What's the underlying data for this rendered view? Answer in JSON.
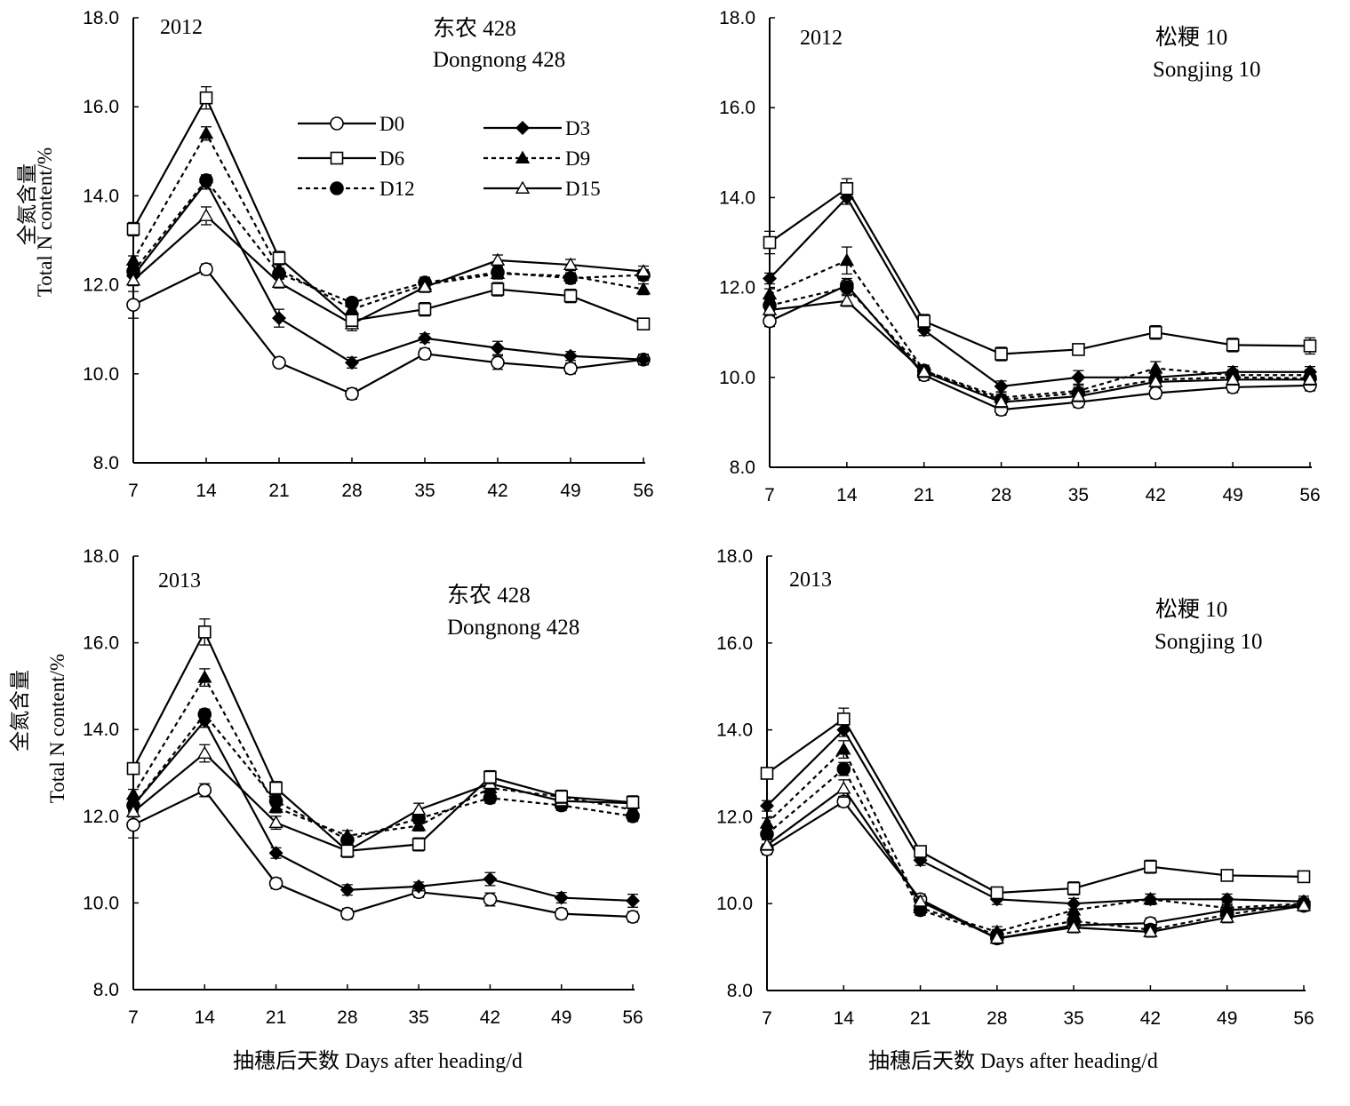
{
  "legend": [
    {
      "key": "D0",
      "label": "D0"
    },
    {
      "key": "D3",
      "label": "D3"
    },
    {
      "key": "D6",
      "label": "D6"
    },
    {
      "key": "D9",
      "label": "D9"
    },
    {
      "key": "D12",
      "label": "D12"
    },
    {
      "key": "D15",
      "label": "D15"
    }
  ],
  "series_styles": {
    "D0": {
      "marker": "circle",
      "fill": "#ffffff",
      "dash": "solid"
    },
    "D3": {
      "marker": "diamond",
      "fill": "#000000",
      "dash": "solid"
    },
    "D6": {
      "marker": "square",
      "fill": "#ffffff",
      "dash": "solid"
    },
    "D9": {
      "marker": "triangle",
      "fill": "#000000",
      "dash": "dotted"
    },
    "D12": {
      "marker": "circle",
      "fill": "#000000",
      "dash": "dotted"
    },
    "D15": {
      "marker": "triangle",
      "fill": "#ffffff",
      "dash": "solid"
    }
  },
  "chart_data": [
    {
      "type": "line",
      "year": "2012",
      "variety_cn": "东农 428",
      "variety_en": "Dongnong 428",
      "ylabel_cn": "全氮含量",
      "ylabel_en": "Total  N content/%",
      "xlabel": "",
      "x": [
        7,
        14,
        21,
        28,
        35,
        42,
        49,
        56
      ],
      "yticks": [
        "8.0",
        "10.0",
        "12.0",
        "14.0",
        "16.0",
        "18.0"
      ],
      "ylim": [
        8,
        18
      ],
      "show_legend": true,
      "series": [
        {
          "name": "D0",
          "values": [
            11.55,
            12.35,
            10.25,
            9.55,
            10.45,
            10.25,
            10.12,
            10.32
          ],
          "err": [
            0.3,
            0.12,
            0.1,
            0.12,
            0.12,
            0.15,
            0.12,
            0.1
          ]
        },
        {
          "name": "D3",
          "values": [
            12.2,
            14.3,
            11.25,
            10.25,
            10.8,
            10.58,
            10.4,
            10.32
          ],
          "err": [
            0.2,
            0.15,
            0.2,
            0.12,
            0.1,
            0.15,
            0.1,
            0.12
          ]
        },
        {
          "name": "D6",
          "values": [
            13.25,
            16.2,
            12.6,
            11.2,
            11.45,
            11.9,
            11.75,
            11.12
          ],
          "err": [
            0.15,
            0.25,
            0.15,
            0.12,
            0.15,
            0.15,
            0.15,
            0.12
          ]
        },
        {
          "name": "D9",
          "values": [
            12.55,
            15.4,
            12.35,
            11.45,
            12.0,
            12.25,
            12.2,
            11.9
          ],
          "err": [
            0.1,
            0.15,
            0.15,
            0.12,
            0.12,
            0.12,
            0.12,
            0.12
          ]
        },
        {
          "name": "D12",
          "values": [
            12.3,
            14.35,
            12.25,
            11.6,
            12.05,
            12.28,
            12.15,
            12.22
          ],
          "err": [
            0.12,
            0.12,
            0.12,
            0.1,
            0.12,
            0.12,
            0.12,
            0.12
          ]
        },
        {
          "name": "D15",
          "values": [
            12.1,
            13.55,
            12.05,
            11.12,
            11.95,
            12.55,
            12.45,
            12.3
          ],
          "err": [
            0.12,
            0.2,
            0.12,
            0.15,
            0.12,
            0.12,
            0.12,
            0.12
          ]
        }
      ]
    },
    {
      "type": "line",
      "year": "2012",
      "variety_cn": "松粳 10",
      "variety_en": "Songjing 10",
      "ylabel_cn": "",
      "ylabel_en": "",
      "xlabel": "",
      "x": [
        7,
        14,
        21,
        28,
        35,
        42,
        49,
        56
      ],
      "yticks": [
        "8.0",
        "10.0",
        "12.0",
        "14.0",
        "16.0",
        "18.0"
      ],
      "ylim": [
        8,
        18
      ],
      "show_legend": false,
      "series": [
        {
          "name": "D0",
          "values": [
            11.25,
            12.05,
            10.05,
            9.28,
            9.45,
            9.65,
            9.78,
            9.82
          ],
          "err": [
            0.12,
            0.15,
            0.12,
            0.12,
            0.12,
            0.12,
            0.12,
            0.12
          ]
        },
        {
          "name": "D3",
          "values": [
            12.2,
            14.0,
            11.05,
            9.8,
            10.0,
            10.0,
            10.12,
            10.12
          ],
          "err": [
            0.12,
            0.15,
            0.12,
            0.12,
            0.15,
            0.15,
            0.12,
            0.12
          ]
        },
        {
          "name": "D6",
          "values": [
            13.0,
            14.2,
            11.25,
            10.52,
            10.62,
            11.0,
            10.72,
            10.7
          ],
          "err": [
            0.25,
            0.22,
            0.15,
            0.15,
            0.12,
            0.15,
            0.15,
            0.18
          ]
        },
        {
          "name": "D9",
          "values": [
            11.85,
            12.6,
            10.15,
            9.55,
            9.7,
            10.2,
            10.05,
            10.05
          ],
          "err": [
            0.12,
            0.3,
            0.12,
            0.12,
            0.12,
            0.15,
            0.12,
            0.12
          ]
        },
        {
          "name": "D12",
          "values": [
            11.6,
            12.0,
            10.15,
            9.5,
            9.65,
            9.95,
            10.0,
            9.98
          ],
          "err": [
            0.12,
            0.15,
            0.12,
            0.12,
            0.12,
            0.12,
            0.12,
            0.12
          ]
        },
        {
          "name": "D15",
          "values": [
            11.5,
            11.7,
            10.12,
            9.45,
            9.58,
            9.9,
            9.95,
            9.95
          ],
          "err": [
            0.12,
            0.12,
            0.12,
            0.12,
            0.12,
            0.12,
            0.12,
            0.12
          ]
        }
      ]
    },
    {
      "type": "line",
      "year": "2013",
      "variety_cn": "东农 428",
      "variety_en": "Dongnong 428",
      "ylabel_cn": "全氮含量",
      "ylabel_en": "Total N content/%",
      "xlabel": "抽穗后天数 Days after heading/d",
      "x": [
        7,
        14,
        21,
        28,
        35,
        42,
        49,
        56
      ],
      "yticks": [
        "8.0",
        "10.0",
        "12.0",
        "14.0",
        "16.0",
        "18.0"
      ],
      "ylim": [
        8,
        18
      ],
      "show_legend": false,
      "series": [
        {
          "name": "D0",
          "values": [
            11.8,
            12.6,
            10.45,
            9.75,
            10.25,
            10.08,
            9.75,
            9.68
          ],
          "err": [
            0.3,
            0.15,
            0.12,
            0.12,
            0.12,
            0.15,
            0.12,
            0.12
          ]
        },
        {
          "name": "D3",
          "values": [
            12.25,
            14.2,
            11.15,
            10.3,
            10.38,
            10.55,
            10.12,
            10.05
          ],
          "err": [
            0.15,
            0.15,
            0.12,
            0.12,
            0.1,
            0.15,
            0.12,
            0.15
          ]
        },
        {
          "name": "D6",
          "values": [
            13.1,
            16.25,
            12.65,
            11.2,
            11.35,
            12.9,
            12.45,
            12.32
          ],
          "err": [
            0.12,
            0.3,
            0.15,
            0.15,
            0.15,
            0.15,
            0.15,
            0.15
          ]
        },
        {
          "name": "D9",
          "values": [
            12.5,
            15.2,
            12.2,
            11.55,
            11.78,
            12.65,
            12.45,
            12.15
          ],
          "err": [
            0.12,
            0.2,
            0.12,
            0.12,
            0.12,
            0.12,
            0.12,
            0.12
          ]
        },
        {
          "name": "D12",
          "values": [
            12.25,
            14.35,
            12.35,
            11.45,
            11.95,
            12.42,
            12.25,
            12.0
          ],
          "err": [
            0.12,
            0.12,
            0.12,
            0.12,
            0.12,
            0.12,
            0.12,
            0.12
          ]
        },
        {
          "name": "D15",
          "values": [
            12.1,
            13.45,
            11.85,
            11.2,
            12.15,
            12.75,
            12.35,
            12.3
          ],
          "err": [
            0.12,
            0.2,
            0.15,
            0.12,
            0.15,
            0.12,
            0.12,
            0.12
          ]
        }
      ]
    },
    {
      "type": "line",
      "year": "2013",
      "variety_cn": "松粳 10",
      "variety_en": "Songjing 10",
      "ylabel_cn": "",
      "ylabel_en": "",
      "xlabel": "抽穗后天数 Days after heading/d",
      "x": [
        7,
        14,
        21,
        28,
        35,
        42,
        49,
        56
      ],
      "yticks": [
        "8.0",
        "10.0",
        "12.0",
        "14.0",
        "16.0",
        "18.0"
      ],
      "ylim": [
        8,
        18
      ],
      "show_legend": false,
      "series": [
        {
          "name": "D0",
          "values": [
            11.25,
            12.35,
            10.1,
            9.2,
            9.5,
            9.55,
            9.85,
            9.95
          ],
          "err": [
            0.12,
            0.12,
            0.12,
            0.12,
            0.12,
            0.12,
            0.12,
            0.12
          ]
        },
        {
          "name": "D3",
          "values": [
            12.25,
            14.0,
            11.0,
            10.1,
            10.0,
            10.1,
            10.1,
            10.05
          ],
          "err": [
            0.12,
            0.15,
            0.12,
            0.12,
            0.12,
            0.12,
            0.12,
            0.12
          ]
        },
        {
          "name": "D6",
          "values": [
            13.0,
            14.25,
            11.2,
            10.25,
            10.35,
            10.85,
            10.65,
            10.62
          ],
          "err": [
            0.12,
            0.25,
            0.12,
            0.12,
            0.15,
            0.15,
            0.12,
            0.12
          ]
        },
        {
          "name": "D9",
          "values": [
            11.85,
            13.55,
            9.9,
            9.35,
            9.85,
            10.1,
            9.9,
            10.0
          ],
          "err": [
            0.12,
            0.2,
            0.12,
            0.12,
            0.12,
            0.12,
            0.12,
            0.12
          ]
        },
        {
          "name": "D12",
          "values": [
            11.6,
            13.1,
            9.85,
            9.28,
            9.6,
            9.4,
            9.75,
            10.0
          ],
          "err": [
            0.12,
            0.15,
            0.12,
            0.12,
            0.12,
            0.12,
            0.12,
            0.12
          ]
        },
        {
          "name": "D15",
          "values": [
            11.35,
            12.65,
            10.05,
            9.2,
            9.45,
            9.35,
            9.68,
            9.95
          ],
          "err": [
            0.12,
            0.2,
            0.12,
            0.12,
            0.12,
            0.12,
            0.12,
            0.12
          ]
        }
      ]
    }
  ]
}
